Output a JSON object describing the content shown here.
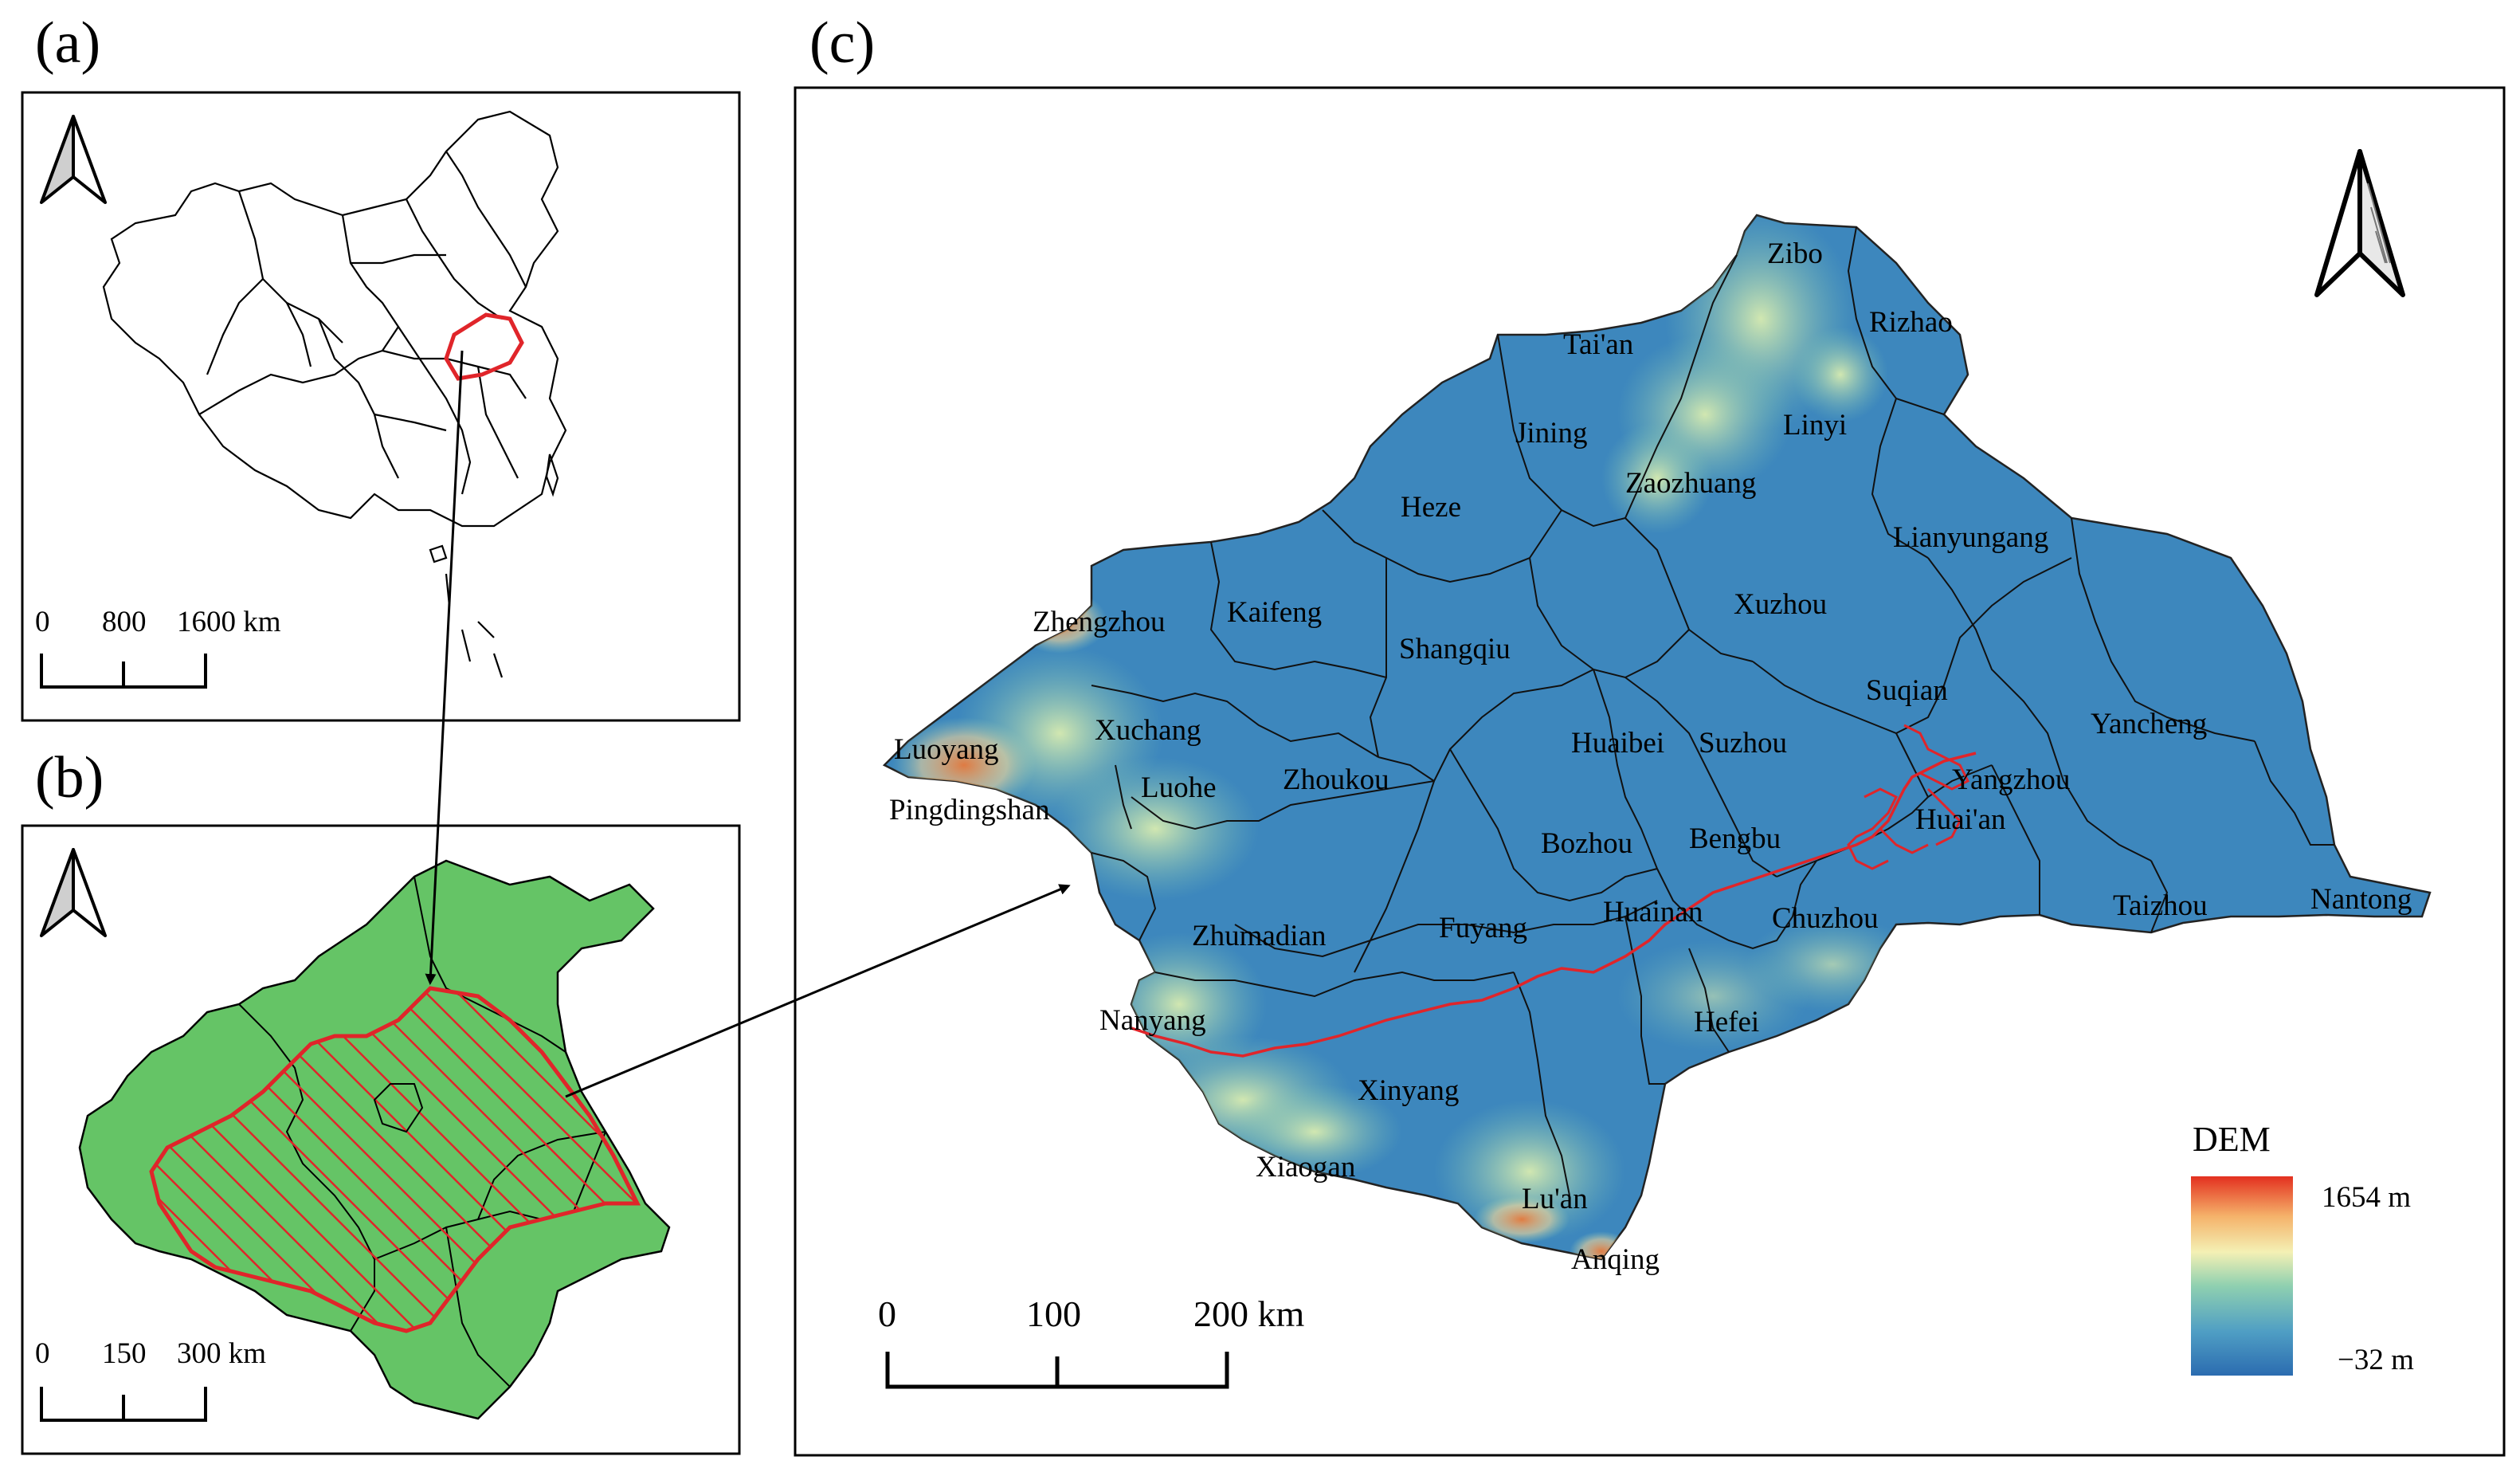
{
  "panels": {
    "a": {
      "label": "(a)",
      "scale_labels": [
        "0",
        "800",
        "1600 km"
      ]
    },
    "b": {
      "label": "(b)",
      "scale_labels": [
        "0",
        "150",
        "300 km"
      ]
    },
    "c": {
      "label": "(c)",
      "scale_labels": [
        "0",
        "100",
        "200 km"
      ],
      "legend": {
        "title": "DEM",
        "max_label": "1654 m",
        "min_label": "−32 m",
        "colors": [
          "#2b6cb0",
          "#4f9ec4",
          "#8fd0b0",
          "#f4f0b4",
          "#f5b26a",
          "#e3301f"
        ]
      },
      "cities": [
        {
          "name": "Zibo"
        },
        {
          "name": "Rizhao"
        },
        {
          "name": "Tai'an"
        },
        {
          "name": "Linyi"
        },
        {
          "name": "Jining"
        },
        {
          "name": "Zaozhuang"
        },
        {
          "name": "Heze"
        },
        {
          "name": "Lianyungang"
        },
        {
          "name": "Zhengzhou"
        },
        {
          "name": "Kaifeng"
        },
        {
          "name": "Xuzhou"
        },
        {
          "name": "Shangqiu"
        },
        {
          "name": "Suqian"
        },
        {
          "name": "Xuchang"
        },
        {
          "name": "Luoyang"
        },
        {
          "name": "Huaibei"
        },
        {
          "name": "Suzhou"
        },
        {
          "name": "Yancheng"
        },
        {
          "name": "Luohe"
        },
        {
          "name": "Zhoukou"
        },
        {
          "name": "Yangzhou"
        },
        {
          "name": "Pingdingshan"
        },
        {
          "name": "Huai'an"
        },
        {
          "name": "Bozhou"
        },
        {
          "name": "Bengbu"
        },
        {
          "name": "Huainan"
        },
        {
          "name": "Chuzhou"
        },
        {
          "name": "Nantong"
        },
        {
          "name": "Taizhou"
        },
        {
          "name": "Zhumadian"
        },
        {
          "name": "Fuyang"
        },
        {
          "name": "Nanyang"
        },
        {
          "name": "Hefei"
        },
        {
          "name": "Xinyang"
        },
        {
          "name": "Xiaogan"
        },
        {
          "name": "Lu'an"
        },
        {
          "name": "Anqing"
        }
      ]
    }
  },
  "colors": {
    "province_fill": "#65c466",
    "highlight": "#e0252a",
    "dem_base": "#3d87bd"
  },
  "icons": [
    "north-arrow-icon"
  ]
}
